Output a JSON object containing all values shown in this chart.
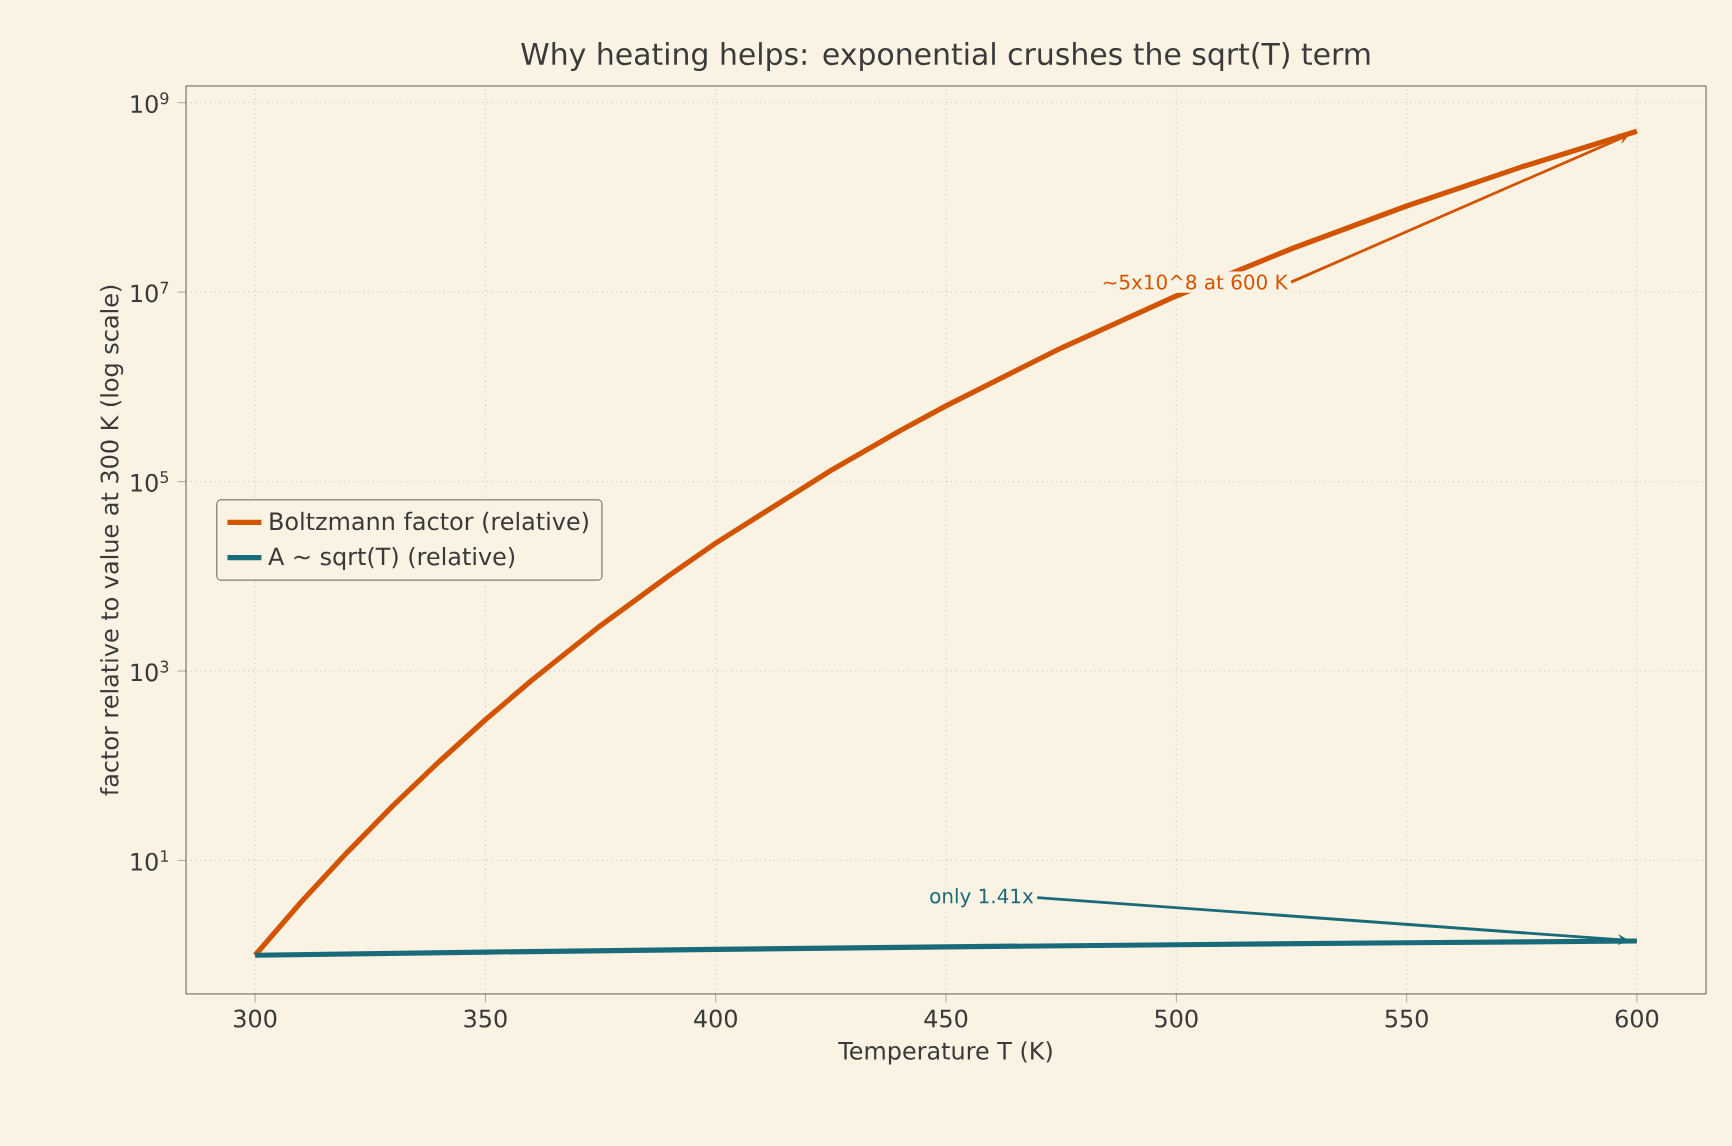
{
  "chart_data": {
    "type": "line",
    "title": "Why heating helps: exponential crushes the sqrt(T) term",
    "xlabel": "Temperature T (K)",
    "ylabel": "factor relative to value at 300 K (log scale)",
    "series": [
      {
        "name": "Boltzmann factor (relative)",
        "color": "#d35400",
        "x": [
          300,
          310,
          320,
          330,
          340,
          350,
          360,
          375,
          390,
          400,
          425,
          440,
          450,
          475,
          500,
          525,
          550,
          575,
          600
        ],
        "values": [
          1,
          3.64,
          12.2,
          38.2,
          111,
          306,
          794,
          3020,
          10300,
          22400,
          131000,
          344000,
          630000,
          2570000,
          9100000,
          28700000,
          81000000,
          210000000,
          500000000
        ]
      },
      {
        "name": "A ~ sqrt(T) (relative)",
        "color": "#1a6b7a",
        "x": [
          300,
          350,
          400,
          450,
          500,
          550,
          600
        ],
        "values": [
          1,
          1.08,
          1.155,
          1.225,
          1.29,
          1.354,
          1.414
        ]
      }
    ],
    "annotations": [
      {
        "text": "~5x10^8 at 600 K",
        "x": 600,
        "y": 500000000
      },
      {
        "text": "only 1.41x",
        "x": 600,
        "y": 1.414
      }
    ],
    "xlim": [
      285,
      615
    ],
    "ylim": [
      0.39,
      1500000000
    ],
    "xticks": [
      300,
      350,
      400,
      450,
      500,
      550,
      600
    ],
    "yticks": [
      {
        "value": 10,
        "label": "10$^{1}$"
      },
      {
        "value": 1000,
        "label": "10$^{3}$"
      },
      {
        "value": 100000,
        "label": "10$^{5}$"
      },
      {
        "value": 10000000,
        "label": "10$^{7}$"
      },
      {
        "value": 1000000000,
        "label": "10$^{9}$"
      }
    ],
    "log": "y",
    "grid": true,
    "legend": "left",
    "line_style": "solid",
    "marker": "none"
  }
}
